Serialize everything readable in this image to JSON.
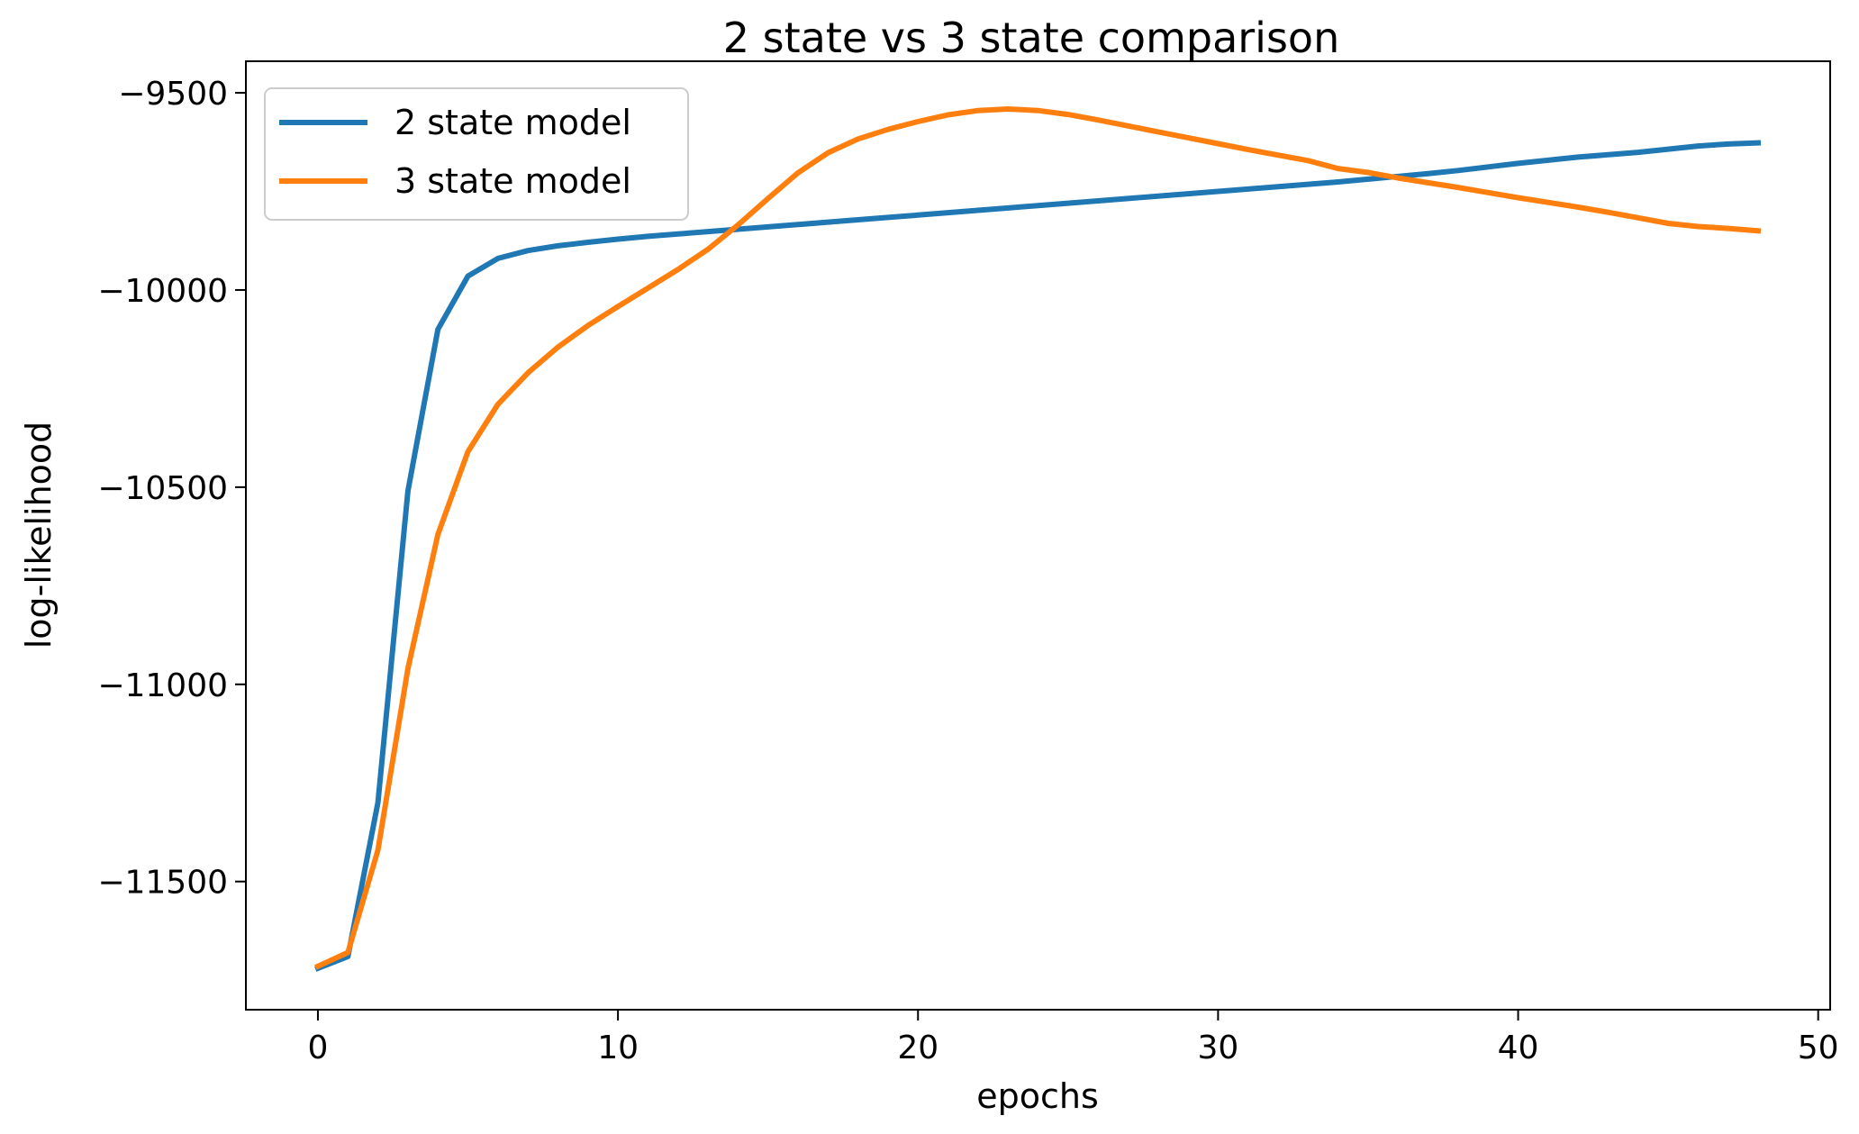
{
  "chart_data": {
    "type": "line",
    "title": "2 state vs 3 state comparison",
    "xlabel": "epochs",
    "ylabel": "log-likelihood",
    "xlim": [
      -2.4,
      50.4
    ],
    "ylim": [
      -11825,
      -9420
    ],
    "xticks": [
      0,
      10,
      20,
      30,
      40,
      50
    ],
    "xtick_labels": [
      "0",
      "10",
      "20",
      "30",
      "40",
      "50"
    ],
    "yticks": [
      -9500,
      -10000,
      -10500,
      -11000,
      -11500
    ],
    "ytick_labels": [
      "−9500",
      "−10000",
      "−10500",
      "−11000",
      "−11500"
    ],
    "grid": false,
    "legend_position": "upper-left",
    "x": [
      0,
      1,
      2,
      3,
      4,
      5,
      6,
      7,
      8,
      9,
      10,
      11,
      12,
      13,
      14,
      15,
      16,
      17,
      18,
      19,
      20,
      21,
      22,
      23,
      24,
      25,
      26,
      27,
      28,
      29,
      30,
      31,
      32,
      33,
      34,
      35,
      36,
      37,
      38,
      39,
      40,
      41,
      42,
      43,
      44,
      45,
      46,
      47,
      48
    ],
    "series": [
      {
        "name": "2 state model",
        "color": "#1f77b4",
        "values": [
          -11720,
          -11690,
          -11300,
          -10510,
          -10100,
          -9965,
          -9920,
          -9900,
          -9888,
          -9879,
          -9871,
          -9864,
          -9858,
          -9852,
          -9846,
          -9840,
          -9834,
          -9828,
          -9822,
          -9816,
          -9810,
          -9804,
          -9798,
          -9792,
          -9786,
          -9780,
          -9774,
          -9768,
          -9762,
          -9756,
          -9750,
          -9744,
          -9738,
          -9732,
          -9726,
          -9719,
          -9712,
          -9705,
          -9697,
          -9688,
          -9679,
          -9671,
          -9663,
          -9657,
          -9651,
          -9643,
          -9635,
          -9630,
          -9627
        ]
      },
      {
        "name": "3 state model",
        "color": "#ff7f0e",
        "values": [
          -11715,
          -11680,
          -11420,
          -10960,
          -10620,
          -10410,
          -10290,
          -10210,
          -10145,
          -10090,
          -10042,
          -9995,
          -9948,
          -9897,
          -9835,
          -9768,
          -9703,
          -9652,
          -9617,
          -9593,
          -9573,
          -9556,
          -9545,
          -9541,
          -9545,
          -9555,
          -9569,
          -9584,
          -9599,
          -9614,
          -9629,
          -9644,
          -9658,
          -9672,
          -9692,
          -9702,
          -9716,
          -9728,
          -9740,
          -9753,
          -9766,
          -9778,
          -9790,
          -9803,
          -9817,
          -9831,
          -9839,
          -9844,
          -9850
        ]
      }
    ]
  }
}
